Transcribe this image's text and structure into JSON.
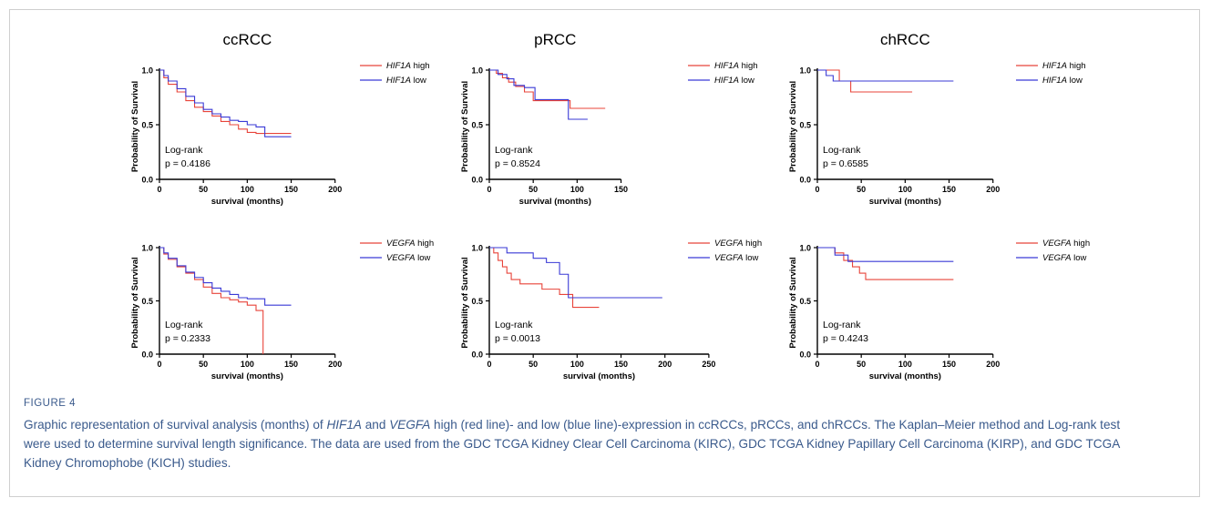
{
  "figure": {
    "label": "FIGURE 4",
    "caption_parts": [
      {
        "text": "Graphic representation of survival analysis (months) of ",
        "italic": false
      },
      {
        "text": "HIF1A",
        "italic": true
      },
      {
        "text": " and ",
        "italic": false
      },
      {
        "text": "VEGFA",
        "italic": true
      },
      {
        "text": " high (red line)- and low (blue line)-expression in ccRCCs, pRCCs, and chRCCs. The Kaplan–Meier method and Log-rank test were used to determine survival length significance. The data are used from the GDC TCGA Kidney Clear Cell Carcinoma (KIRC), GDC TCGA Kidney Papillary Cell Carcinoma (KIRP), and GDC TCGA Kidney Chromophobe (KICH) studies.",
        "italic": false
      }
    ]
  },
  "colors": {
    "high": "#e8443a",
    "low": "#3a3ad6",
    "axis": "#000000",
    "caption": "#3a5a8c"
  },
  "chart_data": [
    {
      "type": "line",
      "title": "ccRCC",
      "xlabel": "survival (months)",
      "ylabel": "Probability of Survival",
      "xlim": [
        0,
        200
      ],
      "ylim": [
        0,
        1.0
      ],
      "xticks": [
        "0",
        "50",
        "100",
        "150",
        "200"
      ],
      "yticks": [
        "0.0",
        "0.5",
        "1.0"
      ],
      "annotation": [
        "Log-rank",
        "p = 0.4186"
      ],
      "series": [
        {
          "name": "HIF1A high",
          "gene": "HIF1A",
          "level": "high",
          "steps": [
            [
              0,
              1.0
            ],
            [
              5,
              0.93
            ],
            [
              10,
              0.87
            ],
            [
              20,
              0.8
            ],
            [
              30,
              0.72
            ],
            [
              40,
              0.66
            ],
            [
              50,
              0.62
            ],
            [
              60,
              0.58
            ],
            [
              70,
              0.53
            ],
            [
              80,
              0.5
            ],
            [
              90,
              0.46
            ],
            [
              100,
              0.43
            ],
            [
              110,
              0.42
            ],
            [
              120,
              0.42
            ],
            [
              150,
              0.42
            ]
          ]
        },
        {
          "name": "HIF1A low",
          "gene": "HIF1A",
          "level": "low",
          "steps": [
            [
              0,
              1.0
            ],
            [
              5,
              0.95
            ],
            [
              10,
              0.9
            ],
            [
              20,
              0.83
            ],
            [
              30,
              0.76
            ],
            [
              40,
              0.7
            ],
            [
              50,
              0.64
            ],
            [
              60,
              0.6
            ],
            [
              70,
              0.57
            ],
            [
              80,
              0.54
            ],
            [
              90,
              0.53
            ],
            [
              100,
              0.5
            ],
            [
              110,
              0.48
            ],
            [
              120,
              0.39
            ],
            [
              150,
              0.39
            ]
          ]
        }
      ]
    },
    {
      "type": "line",
      "title": "pRCC",
      "xlabel": "survival (months)",
      "ylabel": "Probability of Survival",
      "xlim": [
        0,
        150
      ],
      "ylim": [
        0,
        1.0
      ],
      "xticks": [
        "0",
        "50",
        "100",
        "150"
      ],
      "yticks": [
        "0.0",
        "0.5",
        "1.0"
      ],
      "annotation": [
        "Log-rank",
        "p = 0.8524"
      ],
      "series": [
        {
          "name": "HIF1A high",
          "gene": "HIF1A",
          "level": "high",
          "steps": [
            [
              0,
              1.0
            ],
            [
              8,
              0.97
            ],
            [
              15,
              0.93
            ],
            [
              22,
              0.89
            ],
            [
              30,
              0.85
            ],
            [
              40,
              0.8
            ],
            [
              50,
              0.72
            ],
            [
              92,
              0.65
            ],
            [
              132,
              0.65
            ]
          ]
        },
        {
          "name": "HIF1A low",
          "gene": "HIF1A",
          "level": "low",
          "steps": [
            [
              0,
              1.0
            ],
            [
              10,
              0.96
            ],
            [
              20,
              0.92
            ],
            [
              28,
              0.86
            ],
            [
              40,
              0.84
            ],
            [
              52,
              0.73
            ],
            [
              90,
              0.55
            ],
            [
              112,
              0.55
            ]
          ]
        }
      ]
    },
    {
      "type": "line",
      "title": "chRCC",
      "xlabel": "survival (months)",
      "ylabel": "Probability of Survival",
      "xlim": [
        0,
        200
      ],
      "ylim": [
        0,
        1.0
      ],
      "xticks": [
        "0",
        "50",
        "100",
        "150",
        "200"
      ],
      "yticks": [
        "0.0",
        "0.5",
        "1.0"
      ],
      "annotation": [
        "Log-rank",
        "p = 0.6585"
      ],
      "series": [
        {
          "name": "HIF1A high",
          "gene": "HIF1A",
          "level": "high",
          "steps": [
            [
              0,
              1.0
            ],
            [
              25,
              0.9
            ],
            [
              38,
              0.8
            ],
            [
              108,
              0.8
            ]
          ]
        },
        {
          "name": "HIF1A low",
          "gene": "HIF1A",
          "level": "low",
          "steps": [
            [
              0,
              1.0
            ],
            [
              10,
              0.95
            ],
            [
              18,
              0.9
            ],
            [
              155,
              0.9
            ]
          ]
        }
      ]
    },
    {
      "type": "line",
      "title": "",
      "xlabel": "survival (months)",
      "ylabel": "Probability of Survival",
      "xlim": [
        0,
        200
      ],
      "ylim": [
        0,
        1.0
      ],
      "xticks": [
        "0",
        "50",
        "100",
        "150",
        "200"
      ],
      "yticks": [
        "0.0",
        "0.5",
        "1.0"
      ],
      "annotation": [
        "Log-rank",
        "p = 0.2333"
      ],
      "series": [
        {
          "name": "VEGFA high",
          "gene": "VEGFA",
          "level": "high",
          "steps": [
            [
              0,
              1.0
            ],
            [
              5,
              0.94
            ],
            [
              10,
              0.89
            ],
            [
              20,
              0.82
            ],
            [
              30,
              0.76
            ],
            [
              40,
              0.7
            ],
            [
              50,
              0.63
            ],
            [
              60,
              0.57
            ],
            [
              70,
              0.53
            ],
            [
              80,
              0.51
            ],
            [
              90,
              0.49
            ],
            [
              100,
              0.46
            ],
            [
              110,
              0.41
            ],
            [
              118,
              0.0
            ]
          ]
        },
        {
          "name": "VEGFA low",
          "gene": "VEGFA",
          "level": "low",
          "steps": [
            [
              0,
              1.0
            ],
            [
              5,
              0.95
            ],
            [
              10,
              0.9
            ],
            [
              20,
              0.83
            ],
            [
              30,
              0.77
            ],
            [
              40,
              0.72
            ],
            [
              50,
              0.67
            ],
            [
              60,
              0.62
            ],
            [
              70,
              0.59
            ],
            [
              80,
              0.56
            ],
            [
              90,
              0.53
            ],
            [
              100,
              0.52
            ],
            [
              120,
              0.46
            ],
            [
              150,
              0.46
            ]
          ]
        }
      ]
    },
    {
      "type": "line",
      "title": "",
      "xlabel": "survival (months)",
      "ylabel": "Probability of Survival",
      "xlim": [
        0,
        250
      ],
      "ylim": [
        0,
        1.0
      ],
      "xticks": [
        "0",
        "50",
        "100",
        "150",
        "200",
        "250"
      ],
      "yticks": [
        "0.0",
        "0.5",
        "1.0"
      ],
      "annotation": [
        "Log-rank",
        "p = 0.0013"
      ],
      "series": [
        {
          "name": "VEGFA high",
          "gene": "VEGFA",
          "level": "high",
          "steps": [
            [
              0,
              1.0
            ],
            [
              5,
              0.95
            ],
            [
              10,
              0.88
            ],
            [
              15,
              0.82
            ],
            [
              20,
              0.76
            ],
            [
              25,
              0.7
            ],
            [
              35,
              0.66
            ],
            [
              60,
              0.61
            ],
            [
              80,
              0.56
            ],
            [
              95,
              0.44
            ],
            [
              125,
              0.44
            ]
          ]
        },
        {
          "name": "VEGFA low",
          "gene": "VEGFA",
          "level": "low",
          "steps": [
            [
              0,
              1.0
            ],
            [
              20,
              0.95
            ],
            [
              50,
              0.9
            ],
            [
              65,
              0.86
            ],
            [
              80,
              0.75
            ],
            [
              90,
              0.53
            ],
            [
              197,
              0.53
            ]
          ]
        }
      ]
    },
    {
      "type": "line",
      "title": "",
      "xlabel": "survival (months)",
      "ylabel": "Probability of Survival",
      "xlim": [
        0,
        200
      ],
      "ylim": [
        0,
        1.0
      ],
      "xticks": [
        "0",
        "50",
        "100",
        "150",
        "200"
      ],
      "yticks": [
        "0.0",
        "0.5",
        "1.0"
      ],
      "annotation": [
        "Log-rank",
        "p = 0.4243"
      ],
      "series": [
        {
          "name": "VEGFA high",
          "gene": "VEGFA",
          "level": "high",
          "steps": [
            [
              0,
              1.0
            ],
            [
              20,
              0.95
            ],
            [
              30,
              0.88
            ],
            [
              40,
              0.82
            ],
            [
              48,
              0.76
            ],
            [
              55,
              0.7
            ],
            [
              155,
              0.7
            ]
          ]
        },
        {
          "name": "VEGFA low",
          "gene": "VEGFA",
          "level": "low",
          "steps": [
            [
              0,
              1.0
            ],
            [
              20,
              0.93
            ],
            [
              35,
              0.87
            ],
            [
              155,
              0.87
            ]
          ]
        }
      ]
    }
  ]
}
